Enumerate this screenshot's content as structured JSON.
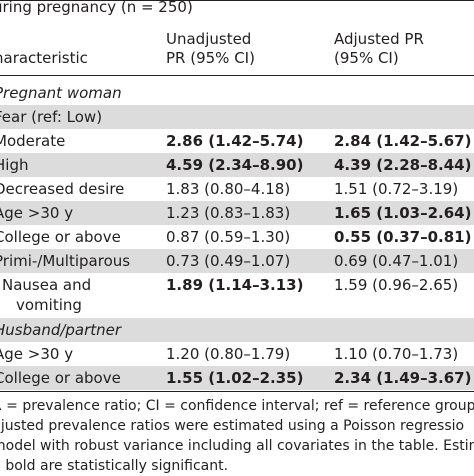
{
  "title": "uring pregnancy (n = 250)",
  "header": {
    "col1": "haracteristic",
    "col2_line1": "Unadjusted",
    "col2_line2": "PR (95% CI)",
    "col3_line1": "Adjusted PR",
    "col3_line2": "(95% CI)"
  },
  "rows": [
    {
      "label": "Pregnant woman",
      "unadj": "",
      "adj": ""
    },
    {
      "label": "Fear (ref: Low)",
      "unadj": "",
      "adj": ""
    },
    {
      "label": "Moderate",
      "unadj": "2.86 (1.42–5.74)",
      "adj": "2.84 (1.42–5.67)"
    },
    {
      "label": "High",
      "unadj": "4.59 (2.34–8.90)",
      "adj": "4.39 (2.28–8.44)"
    },
    {
      "label": "Decreased desire",
      "unadj": "1.83 (0.80–4.18)",
      "adj": "1.51 (0.72–3.19)"
    },
    {
      "label": "Age >30 y",
      "unadj": "1.23 (0.83–1.83)",
      "adj": "1.65 (1.03–2.64)"
    },
    {
      "label": "College or above",
      "unadj": "0.87 (0.59–1.30)",
      "adj": "0.55 (0.37–0.81)"
    },
    {
      "label": "Primi-/Multiparous",
      "unadj": "0.73 (0.49–1.07)",
      "adj": "0.69 (0.47–1.01)"
    },
    {
      "label_line1": "Nausea and",
      "label_line2": "vomiting",
      "unadj": "1.89 (1.14–3.13)",
      "adj": "1.59 (0.96–2.65)"
    },
    {
      "label": "Husband/partner",
      "unadj": "",
      "adj": ""
    },
    {
      "label": "Age >30 y",
      "unadj": "1.20 (0.80–1.79)",
      "adj": "1.10 (0.70–1.73)"
    },
    {
      "label": "College or above",
      "unadj": "1.55 (1.02–2.35)",
      "adj": "2.34 (1.49–3.67)"
    }
  ],
  "footnotes": [
    "R = prevalence ratio; CI = confidence interval; ref = reference group.",
    "djusted prevalence ratios were estimated using a Poisson regressio",
    "model with robust variance including all covariates in the table. Estimate",
    "n bold are statistically significant."
  ]
}
